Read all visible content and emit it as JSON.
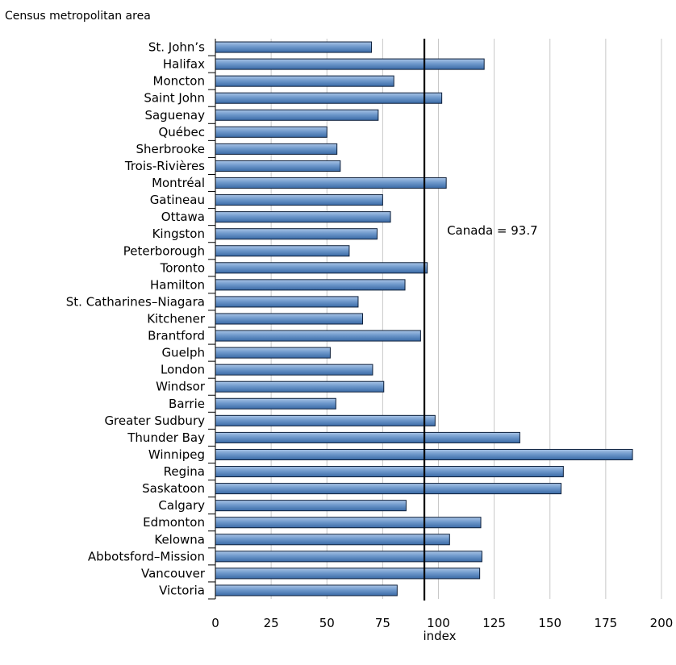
{
  "chart_data": {
    "type": "bar",
    "orientation": "horizontal",
    "title": "",
    "ylabel": "Census metropolitan area",
    "xlabel": "index",
    "xlim": [
      0,
      200
    ],
    "xticks": [
      0,
      25,
      50,
      75,
      100,
      125,
      150,
      175,
      200
    ],
    "grid": "vertical",
    "bar_color": "#5b86bd",
    "reference_line": {
      "value": 93.7,
      "label": "Canada = 93.7"
    },
    "categories": [
      "St. John’s",
      "Halifax",
      "Moncton",
      "Saint John",
      "Saguenay",
      "Québec",
      "Sherbrooke",
      "Trois-Rivières",
      "Montréal",
      "Gatineau",
      "Ottawa",
      "Kingston",
      "Peterborough",
      "Toronto",
      "Hamilton",
      "St. Catharines–Niagara",
      "Kitchener",
      "Brantford",
      "Guelph",
      "London",
      "Windsor",
      "Barrie",
      "Greater Sudbury",
      "Thunder Bay",
      "Winnipeg",
      "Regina",
      "Saskatoon",
      "Calgary",
      "Edmonton",
      "Kelowna",
      "Abbotsford–Mission",
      "Vancouver",
      "Victoria"
    ],
    "values": [
      70,
      120.5,
      80,
      101.5,
      73,
      50,
      54.5,
      56,
      103.5,
      75,
      78.5,
      72.5,
      60,
      95,
      85,
      64,
      66,
      92,
      51.5,
      70.5,
      75.5,
      54,
      98.5,
      136.5,
      187,
      156,
      155,
      85.5,
      119,
      105,
      119.5,
      118.5,
      81.5
    ]
  }
}
